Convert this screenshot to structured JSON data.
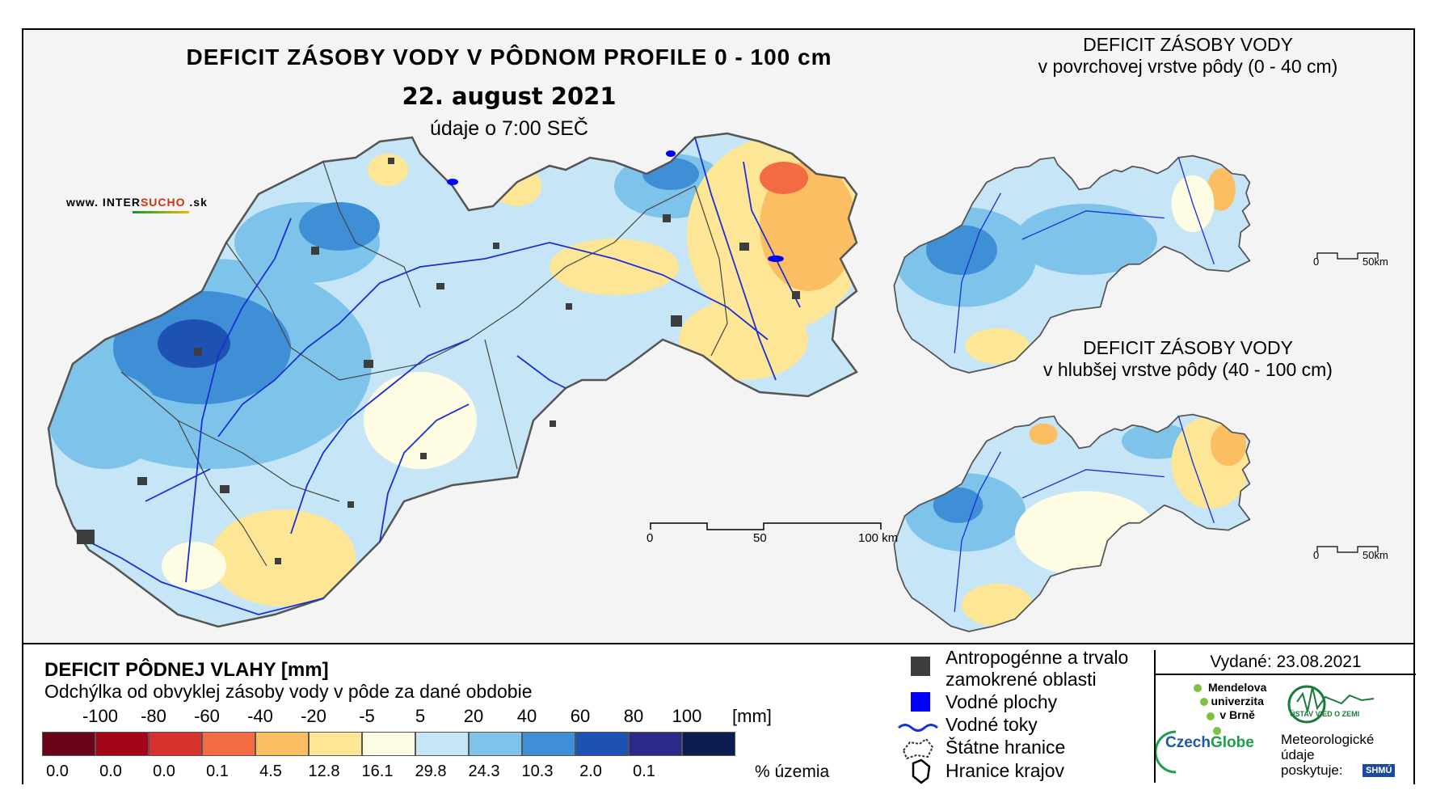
{
  "title": {
    "main": "DEFICIT ZÁSOBY VODY V PÔDNOM PROFILE 0 - 100 cm",
    "date": "22. august 2021",
    "time": "údaje o 7:00 SEČ"
  },
  "website": {
    "prefix": "www. INTER",
    "brand": "SUCHO",
    "suffix": " .sk"
  },
  "inset_top": {
    "line1": "DEFICIT ZÁSOBY VODY",
    "line2": "v povrchovej vrstve pôdy (0 - 40 cm)",
    "scale_start": "0",
    "scale_end": "50km"
  },
  "inset_bottom": {
    "line1": "DEFICIT ZÁSOBY VODY",
    "line2": "v hlubšej vrstve pôdy (40 - 100 cm)",
    "scale_start": "0",
    "scale_end": "50km"
  },
  "main_scale": {
    "label_0": "0",
    "label_50": "50",
    "label_100": "100 km"
  },
  "legend": {
    "title": "DEFICIT PÔDNEJ VLAHY [mm]",
    "subtitle": "Odchýlka od obvyklej zásoby vody v pôde za dané obdobie",
    "unit": "[mm]",
    "pct_label": "% územia",
    "bounds": [
      "-100",
      "-80",
      "-60",
      "-40",
      "-20",
      "-5",
      "5",
      "20",
      "40",
      "60",
      "80",
      "100"
    ],
    "classes": [
      {
        "color": "#6a0417",
        "pct": "0.0"
      },
      {
        "color": "#a5051b",
        "pct": "0.0"
      },
      {
        "color": "#d6322e",
        "pct": "0.0"
      },
      {
        "color": "#f26b45",
        "pct": "0.1"
      },
      {
        "color": "#fbbe63",
        "pct": "4.5"
      },
      {
        "color": "#fde695",
        "pct": "12.8"
      },
      {
        "color": "#fefce3",
        "pct": "16.1"
      },
      {
        "color": "#c6e5f6",
        "pct": "29.8"
      },
      {
        "color": "#7ec3ea",
        "pct": "24.3"
      },
      {
        "color": "#3e8fd6",
        "pct": "10.3"
      },
      {
        "color": "#1d52b2",
        "pct": "2.0"
      },
      {
        "color": "#2a2a8a",
        "pct": "0.1"
      },
      {
        "color": "#0b1d4f",
        "pct": ""
      }
    ]
  },
  "symbols": {
    "anthropogenic_1": "Antropogénne a trvalo",
    "anthropogenic_2": "zamokrené oblasti",
    "water_bodies": "Vodné plochy",
    "rivers": "Vodné toky",
    "state_border": "Štátne hranice",
    "regions": "Hranice krajov"
  },
  "issued": "Vydané: 23.08.2021",
  "logos": {
    "mendel_1": "Mendelova",
    "mendel_2": "univerzita",
    "mendel_3": "v Brně",
    "czech_a": "Czech",
    "czech_b": "Globe",
    "uvz": "ÚSTAV VIED O ZEMI",
    "meteo_1": "Meteorologické",
    "meteo_2": "údaje",
    "meteo_3": "poskytuje:",
    "shmu": "SHMÚ"
  },
  "colors": {
    "anthropogenic": "#3d3d3d",
    "water": "#0000ff",
    "river": "#1b2fd6"
  }
}
